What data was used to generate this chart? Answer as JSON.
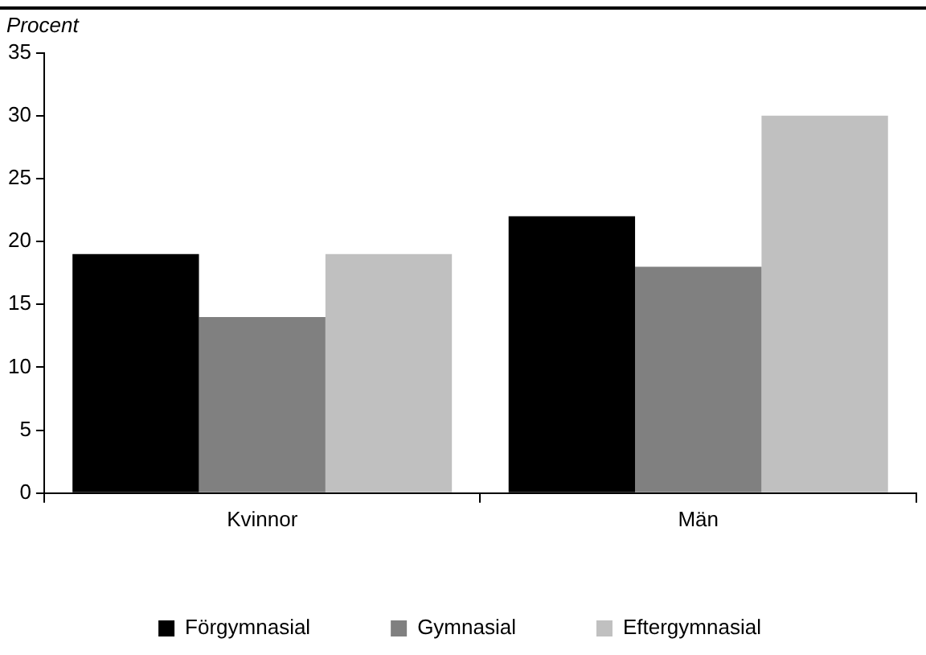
{
  "chart_data": {
    "type": "bar",
    "ylabel": "Procent",
    "categories": [
      "Kvinnor",
      "Män"
    ],
    "series": [
      {
        "name": "Förgymnasial",
        "color": "#000000",
        "values": [
          19,
          22
        ]
      },
      {
        "name": "Gymnasial",
        "color": "#808080",
        "values": [
          14,
          18
        ]
      },
      {
        "name": "Eftergymnasial",
        "color": "#c0c0c0",
        "values": [
          19,
          30
        ]
      }
    ],
    "ylim": [
      0,
      35
    ],
    "yticks": [
      0,
      5,
      10,
      15,
      20,
      25,
      30,
      35
    ],
    "grid": false,
    "legend": "bottom"
  }
}
